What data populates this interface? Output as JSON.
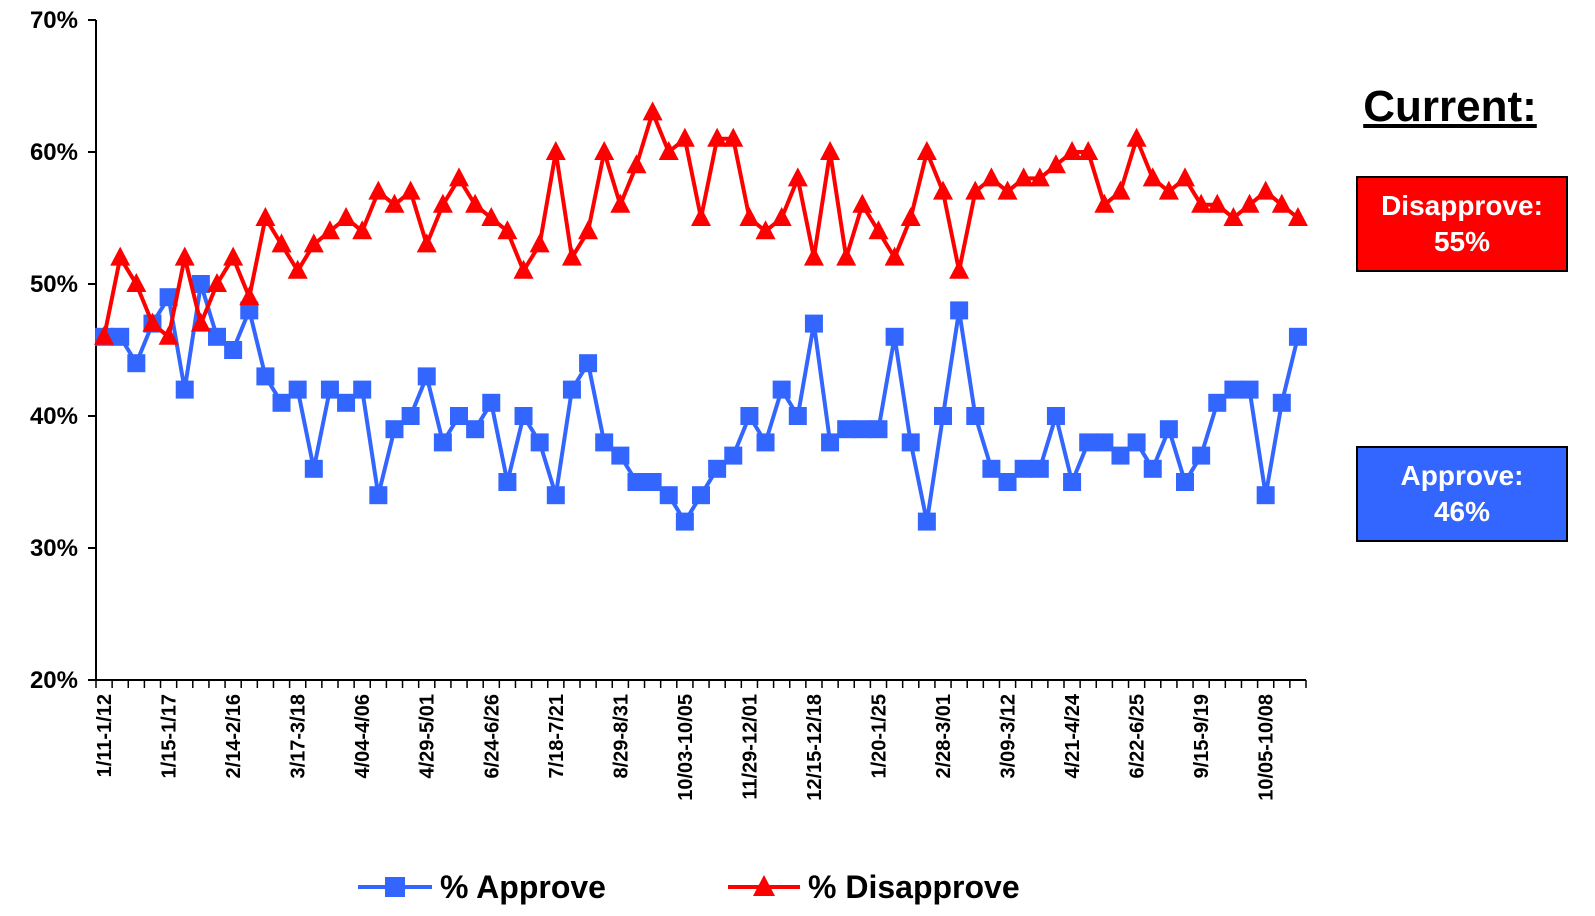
{
  "current": {
    "title": "Current:",
    "disapprove_label": "Disapprove:",
    "disapprove_value": "55%",
    "approve_label": "Approve:",
    "approve_value": "46%"
  },
  "chart_data": {
    "type": "line",
    "ylim": [
      20,
      70
    ],
    "yticks": [
      "20%",
      "30%",
      "40%",
      "50%",
      "60%",
      "70%"
    ],
    "ytick_values": [
      20,
      30,
      40,
      50,
      60,
      70
    ],
    "x_tick_labels": [
      "1/11-1/12",
      "1/15-1/17",
      "2/14-2/16",
      "3/17-3/18",
      "4/04-4/06",
      "4/29-5/01",
      "6/24-6/26",
      "7/18-7/21",
      "8/29-8/31",
      "10/03-10/05",
      "11/29-12/01",
      "12/15-12/18",
      "1/20-1/25",
      "2/28-3/01",
      "3/09-3/12",
      "4/21-4/24",
      "6/22-6/25",
      "9/15-9/19",
      "10/05-10/08"
    ],
    "legend": "bottom",
    "series": [
      {
        "name": "% Approve",
        "color": "#3366ff",
        "marker": "square",
        "values": [
          46,
          46,
          44,
          47,
          49,
          42,
          50,
          46,
          45,
          48,
          43,
          41,
          42,
          36,
          42,
          41,
          42,
          34,
          39,
          40,
          43,
          38,
          40,
          39,
          41,
          35,
          40,
          38,
          34,
          42,
          44,
          38,
          37,
          35,
          35,
          34,
          32,
          34,
          36,
          37,
          40,
          38,
          42,
          40,
          47,
          38,
          39,
          39,
          39,
          46,
          38,
          32,
          40,
          48,
          40,
          36,
          35,
          36,
          36,
          40,
          35,
          38,
          38,
          37,
          38,
          36,
          39,
          35,
          37,
          41,
          42,
          42,
          34,
          41,
          46
        ]
      },
      {
        "name": "% Disapprove",
        "color": "#ff0000",
        "marker": "triangle",
        "values": [
          46,
          52,
          50,
          47,
          46,
          52,
          47,
          50,
          52,
          49,
          55,
          53,
          51,
          53,
          54,
          55,
          54,
          57,
          56,
          57,
          53,
          56,
          58,
          56,
          55,
          54,
          51,
          53,
          60,
          52,
          54,
          60,
          56,
          59,
          63,
          60,
          61,
          55,
          61,
          61,
          55,
          54,
          55,
          58,
          52,
          60,
          52,
          56,
          54,
          52,
          55,
          60,
          57,
          51,
          57,
          58,
          57,
          58,
          58,
          59,
          60,
          60,
          56,
          57,
          61,
          58,
          57,
          58,
          56,
          56,
          55,
          56,
          57,
          56,
          55
        ]
      }
    ]
  }
}
